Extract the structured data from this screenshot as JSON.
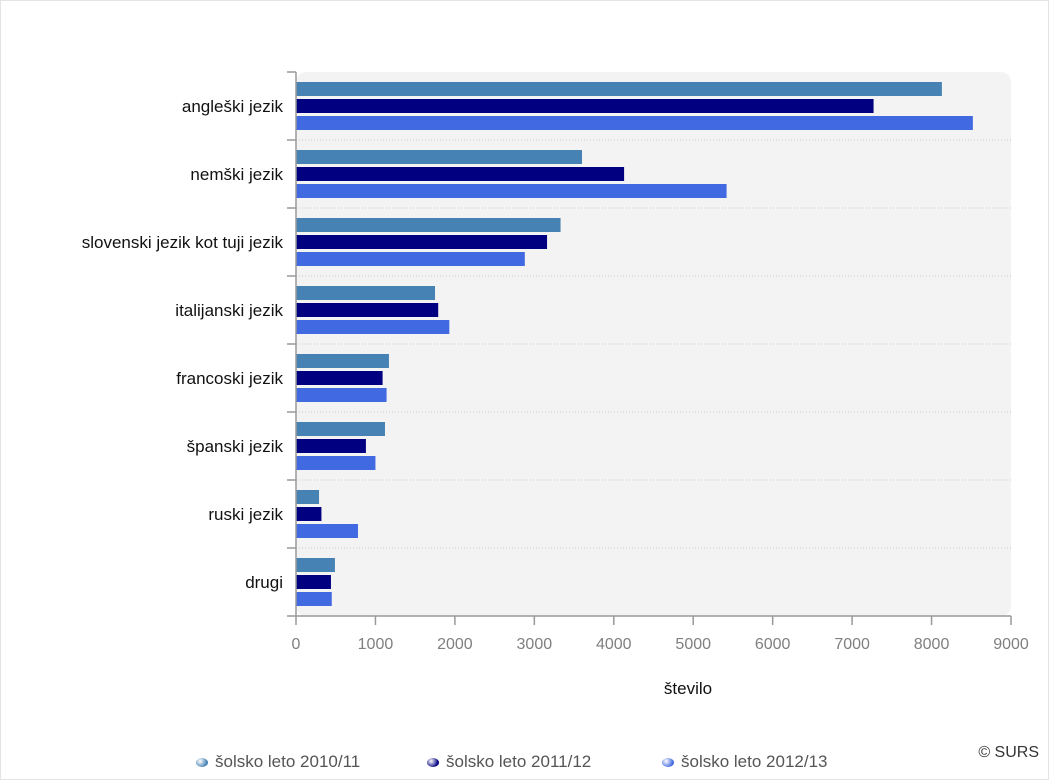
{
  "chart_data": {
    "type": "bar",
    "orientation": "horizontal",
    "categories": [
      "angleški jezik",
      "nemški jezik",
      "slovenski jezik kot tuji jezik",
      "italijanski jezik",
      "francoski jezik",
      "španski jezik",
      "ruski jezik",
      "drugi"
    ],
    "series": [
      {
        "name": "šolsko leto 2010/11",
        "color": "#4682b4",
        "values": [
          8130,
          3600,
          3330,
          1750,
          1170,
          1120,
          290,
          490
        ]
      },
      {
        "name": "šolsko leto 2011/12",
        "color": "#000080",
        "values": [
          7270,
          4130,
          3160,
          1790,
          1090,
          880,
          320,
          440
        ]
      },
      {
        "name": "šolsko leto 2012/13",
        "color": "#4169e1",
        "values": [
          8520,
          5420,
          2880,
          1930,
          1140,
          1000,
          780,
          450
        ]
      }
    ],
    "xlabel": "število",
    "ylabel": "",
    "xlim": [
      0,
      9000
    ],
    "xticks": [
      "0",
      "1000",
      "2000",
      "3000",
      "4000",
      "5000",
      "6000",
      "7000",
      "8000",
      "9000"
    ],
    "grid": true,
    "legend_position": "bottom"
  },
  "copyright": "© SURS"
}
